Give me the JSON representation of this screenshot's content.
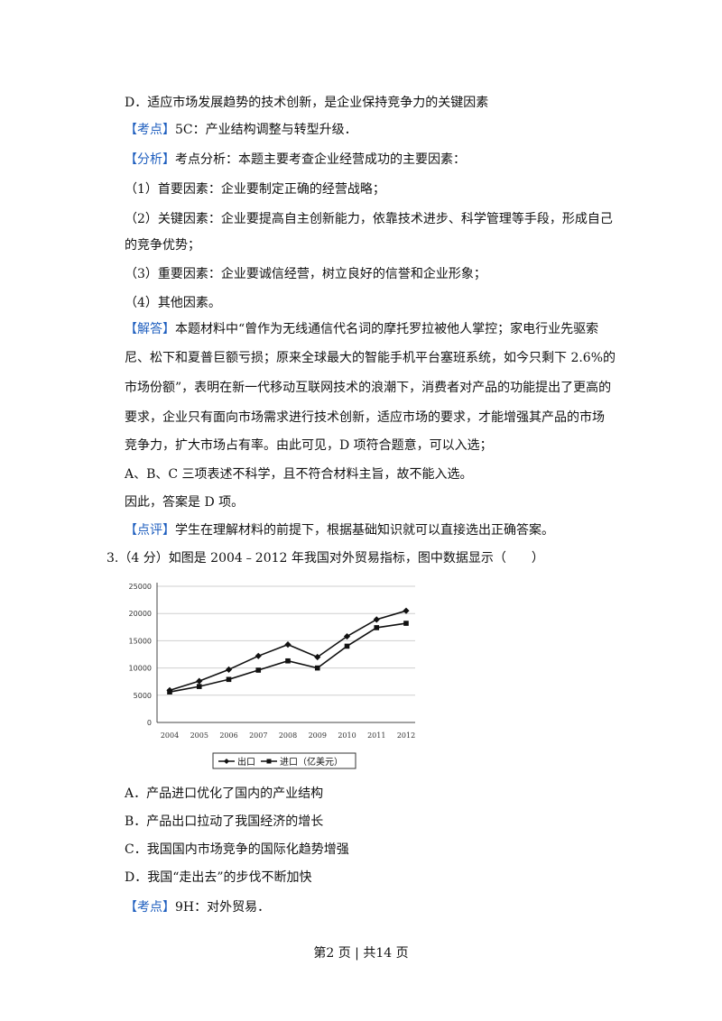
{
  "lines": {
    "l1": "D．适应市场发展趋势的技术创新，是企业保持竞争力的关键因素",
    "kaodian1_tag": "【考点】",
    "kaodian1_text": "5C：产业结构调整与转型升级．",
    "fenxi_tag": "【分析】",
    "fenxi_text": "考点分析：本题主要考查企业经营成功的主要因素：",
    "f1": "（1）首要因素：企业要制定正确的经营战略；",
    "f2a": "（2）关键因素：企业要提高自主创新能力，依靠技术进步、科学管理等手段，形成自己",
    "f2b": "的竞争优势；",
    "f3": "（3）重要因素：企业要诚信经营，树立良好的信誉和企业形象；",
    "f4": "（4）其他因素。",
    "jieda_tag": "【解答】",
    "jieda_a": "本题材料中“曾作为无线通信代名词的摩托罗拉被他人掌控；家电行业先驱索",
    "jieda_b": "尼、松下和夏普巨额亏损；原来全球最大的智能手机平台塞班系统，如今只剩下 2.6%的",
    "jieda_c": "市场份额”，表明在新一代移动互联网技术的浪潮下，消费者对产品的功能提出了更高的",
    "jieda_d": "要求，企业只有面向市场需求进行技术创新，适应市场的要求，才能增强其产品的市场",
    "jieda_e": "竞争力，扩大市场占有率。由此可见，D 项符合题意，可以入选；",
    "abc": "A、B、C 三项表述不科学，且不符合材料主旨，故不能入选。",
    "yinci": "因此，答案是 D 项。",
    "dianping_tag": "【点评】",
    "dianping_text": "学生在理解材料的前提下，根据基础知识就可以直接选出正确答案。",
    "q3": "3.（4 分）如图是 2004﹣2012 年我国对外贸易指标，图中数据显示（　　）",
    "optA": "A．产品进口优化了国内的产业结构",
    "optB": "B．产品出口拉动了我国经济的增长",
    "optC": "C．我国国内市场竞争的国际化趋势增强",
    "optD": "D．我国“走出去”的步伐不断加快",
    "kaodian2_tag": "【考点】",
    "kaodian2_text": "9H：对外贸易．"
  },
  "footer": "第2 页 | 共14 页",
  "colors": {
    "tag": "#1f5fbf"
  },
  "chart_data": {
    "type": "line",
    "categories": [
      "2004",
      "2005",
      "2006",
      "2007",
      "2008",
      "2009",
      "2010",
      "2011",
      "2012"
    ],
    "ylim": [
      0,
      25000
    ],
    "yticks": [
      "0",
      "5000",
      "10000",
      "15000",
      "20000",
      "25000"
    ],
    "grid": true,
    "legend_placement": "bottom",
    "series": [
      {
        "name": "出口",
        "marker": "diamond",
        "values": [
          5900,
          7600,
          9700,
          12200,
          14300,
          12000,
          15800,
          18900,
          20500
        ]
      },
      {
        "name": "进口（亿美元）",
        "marker": "square",
        "values": [
          5600,
          6600,
          7900,
          9600,
          11300,
          10000,
          14000,
          17400,
          18200
        ]
      }
    ]
  }
}
